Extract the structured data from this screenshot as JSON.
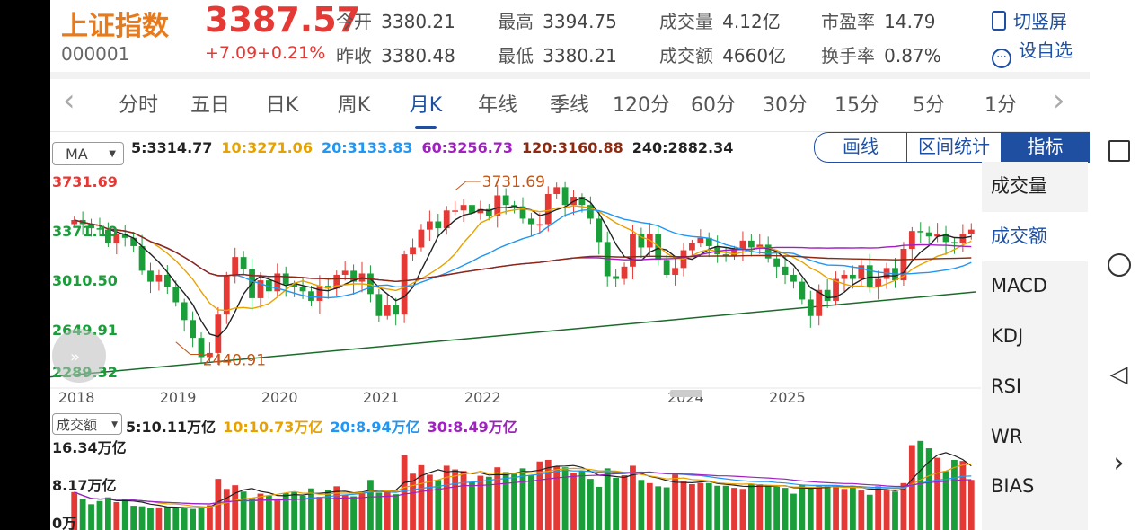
{
  "stock": {
    "name": "上证指数",
    "code": "000001",
    "price": "3387.57",
    "change": "+7.09",
    "change_pct": "+0.21%"
  },
  "stats": [
    {
      "label": "今开",
      "value": "3380.21"
    },
    {
      "label": "昨收",
      "value": "3380.48"
    },
    {
      "label": "最高",
      "value": "3394.75"
    },
    {
      "label": "最低",
      "value": "3380.21"
    },
    {
      "label": "成交量",
      "value": "4.12亿"
    },
    {
      "label": "成交额",
      "value": "4660亿"
    },
    {
      "label": "市盈率",
      "value": "14.79"
    },
    {
      "label": "换手率",
      "value": "0.87%"
    }
  ],
  "actions": {
    "switch": "切竖屏",
    "watch": "设自选"
  },
  "tabs": [
    "分时",
    "五日",
    "日K",
    "周K",
    "月K",
    "年线",
    "季线",
    "120分",
    "60分",
    "30分",
    "15分",
    "5分",
    "1分"
  ],
  "active_tab": 4,
  "ma_select": "MA",
  "ma_legend": [
    {
      "text": "5:3314.77",
      "color": "#222222"
    },
    {
      "text": "10:3271.06",
      "color": "#e8a200"
    },
    {
      "text": "20:3133.83",
      "color": "#2196f3"
    },
    {
      "text": "60:3256.73",
      "color": "#a020c0"
    },
    {
      "text": "120:3160.88",
      "color": "#8b2a10"
    },
    {
      "text": "240:2882.34",
      "color": "#222222"
    }
  ],
  "chart_buttons": {
    "draw": "画线",
    "range": "区间统计",
    "indicator": "指标"
  },
  "indicators": [
    "成交量",
    "成交额",
    "MACD",
    "KDJ",
    "RSI",
    "WR",
    "BIAS"
  ],
  "active_indicator": 1,
  "vol_select": "成交额",
  "vol_legend": [
    {
      "text": "5:10.11万亿",
      "color": "#222222"
    },
    {
      "text": "10:10.73万亿",
      "color": "#e8a200"
    },
    {
      "text": "20:8.94万亿",
      "color": "#2196f3"
    },
    {
      "text": "30:8.49万亿",
      "color": "#a020c0"
    }
  ],
  "colors": {
    "up": "#e53935",
    "down": "#1a9e3a",
    "accent": "#1f4fa0"
  },
  "chart_data": [
    {
      "type": "candlestick",
      "title": "上证指数 月K",
      "y_ticks": [
        {
          "v": 3731.69,
          "label": "3731.69",
          "color": "#e53935"
        },
        {
          "v": 3371.1,
          "label": "3371.10",
          "color": "#1a9e3a"
        },
        {
          "v": 3010.5,
          "label": "3010.50",
          "color": "#1a9e3a"
        },
        {
          "v": 2649.91,
          "label": "2649.91",
          "color": "#1a9e3a"
        },
        {
          "v": 2289.32,
          "label": "2289.32",
          "color": "#1a9e3a"
        }
      ],
      "ylim": [
        2289.32,
        3731.69
      ],
      "x_ticks": [
        {
          "i": 0,
          "label": "2018"
        },
        {
          "i": 12,
          "label": "2019"
        },
        {
          "i": 24,
          "label": "2020"
        },
        {
          "i": 36,
          "label": "2021"
        },
        {
          "i": 48,
          "label": "2022"
        },
        {
          "i": 72,
          "label": "2024"
        },
        {
          "i": 84,
          "label": "2025"
        }
      ],
      "annotations": [
        {
          "i": 45,
          "v": 3731.69,
          "label": "3731.69"
        },
        {
          "i": 12,
          "v": 2440.91,
          "label": "2440.91"
        }
      ],
      "closes": [
        3450,
        3420,
        3390,
        3380,
        3280,
        3350,
        3320,
        3260,
        3080,
        3000,
        3050,
        2960,
        2850,
        2720,
        2590,
        2450,
        2480,
        2760,
        3040,
        3180,
        3090,
        2880,
        3010,
        2930,
        3060,
        2980,
        2960,
        2930,
        2860,
        2970,
        2950,
        3050,
        3080,
        3000,
        3060,
        2910,
        2750,
        2830,
        2760,
        3200,
        3250,
        3380,
        3440,
        3390,
        3520,
        3520,
        3560,
        3500,
        3530,
        3480,
        3630,
        3560,
        3550,
        3460,
        3420,
        3420,
        3640,
        3690,
        3560,
        3620,
        3560,
        3460,
        3290,
        3040,
        3020,
        3110,
        3350,
        3250,
        3350,
        3160,
        3050,
        3100,
        3230,
        3280,
        3320,
        3260,
        3200,
        3190,
        3230,
        3300,
        3250,
        3270,
        3170,
        3110,
        3050,
        3000,
        2870,
        2750,
        2940,
        2860,
        3020,
        3050,
        3020,
        3120,
        2960,
        3020,
        3100,
        3010,
        3240,
        3370,
        3360,
        3330,
        3350,
        3290,
        3280,
        3350,
        3380
      ]
    },
    {
      "type": "bar",
      "title": "成交额",
      "y_ticks": [
        {
          "v": 16.34,
          "label": "16.34万亿"
        },
        {
          "v": 8.17,
          "label": "8.17万亿"
        },
        {
          "v": 0,
          "label": "0万"
        }
      ],
      "ylim": [
        0,
        16.34
      ],
      "values": [
        6.5,
        5.2,
        4.2,
        4.8,
        5.5,
        4.6,
        5.2,
        3.9,
        3.8,
        3.5,
        3.6,
        3.7,
        3.6,
        3.4,
        3.3,
        3.5,
        4.0,
        9.0,
        7.1,
        7.8,
        6.6,
        5.4,
        6.2,
        5.8,
        5.3,
        6.3,
        6.5,
        5.8,
        7.2,
        5.6,
        6.9,
        7.6,
        6.0,
        5.7,
        6.3,
        8.8,
        6.4,
        6.8,
        6.1,
        13.5,
        10.0,
        11.6,
        9.8,
        8.8,
        11.5,
        10.8,
        10.5,
        8.4,
        9.6,
        9.4,
        11.2,
        10.3,
        10.0,
        11.0,
        9.7,
        12.3,
        12.6,
        11.4,
        11.2,
        10.2,
        10.5,
        9.0,
        7.5,
        11.0,
        9.2,
        9.7,
        11.5,
        8.8,
        8.2,
        7.6,
        7.4,
        9.9,
        8.5,
        8.0,
        8.2,
        8.2,
        7.7,
        7.7,
        7.3,
        7.1,
        8.0,
        8.0,
        7.7,
        7.5,
        7.3,
        6.2,
        7.8,
        7.3,
        7.8,
        7.8,
        7.6,
        7.1,
        7.7,
        6.8,
        6.0,
        7.6,
        6.8,
        6.6,
        8.2,
        15.4,
        16.2,
        14.8,
        13.0,
        10.5,
        12.6,
        12.4,
        8.8
      ]
    }
  ]
}
